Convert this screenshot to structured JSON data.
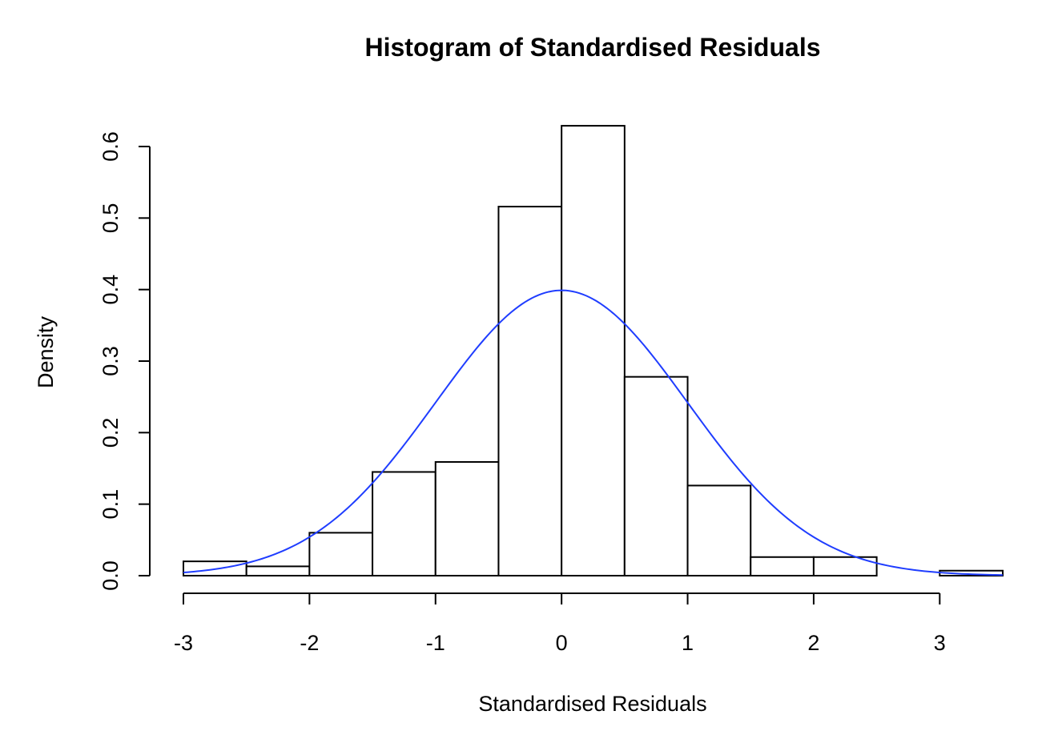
{
  "chart_data": {
    "type": "bar",
    "title": "Histogram of Standardised Residuals",
    "xlabel": "Standardised Residuals",
    "ylabel": "Density",
    "xlim": [
      -3,
      3.5
    ],
    "ylim": [
      0,
      0.6
    ],
    "x_ticks": [
      -3,
      -2,
      -1,
      0,
      1,
      2,
      3
    ],
    "x_tick_labels": [
      "-3",
      "-2",
      "-1",
      "0",
      "1",
      "2",
      "3"
    ],
    "y_ticks": [
      0,
      0.1,
      0.2,
      0.3,
      0.4,
      0.5,
      0.6
    ],
    "y_tick_labels": [
      "0.0",
      "0.1",
      "0.2",
      "0.3",
      "0.4",
      "0.5",
      "0.6"
    ],
    "grid": false,
    "bins": [
      {
        "start": -3.0,
        "end": -2.5,
        "density": 0.02
      },
      {
        "start": -2.5,
        "end": -2.0,
        "density": 0.013
      },
      {
        "start": -2.0,
        "end": -1.5,
        "density": 0.06
      },
      {
        "start": -1.5,
        "end": -1.0,
        "density": 0.145
      },
      {
        "start": -1.0,
        "end": -0.5,
        "density": 0.159
      },
      {
        "start": -0.5,
        "end": 0.0,
        "density": 0.516
      },
      {
        "start": 0.0,
        "end": 0.5,
        "density": 0.629
      },
      {
        "start": 0.5,
        "end": 1.0,
        "density": 0.278
      },
      {
        "start": 1.0,
        "end": 1.5,
        "density": 0.126
      },
      {
        "start": 1.5,
        "end": 2.0,
        "density": 0.026
      },
      {
        "start": 2.0,
        "end": 2.5,
        "density": 0.026
      },
      {
        "start": 2.5,
        "end": 3.0,
        "density": 0.0
      },
      {
        "start": 3.0,
        "end": 3.5,
        "density": 0.007
      }
    ],
    "overlay": {
      "type": "line",
      "curve": "standard normal density",
      "mean": 0,
      "sd": 1,
      "x_range": [
        -3,
        3.5
      ],
      "color": "#1f3dff"
    },
    "bar_fill": "#ffffff",
    "bar_stroke": "#000000"
  }
}
